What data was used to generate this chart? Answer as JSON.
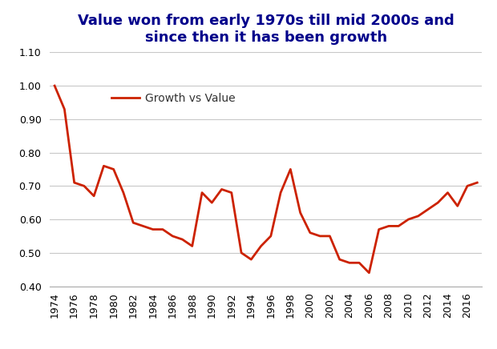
{
  "title": "Value won from early 1970s till mid 2000s and\nsince then it has been growth",
  "legend_label": "Growth vs Value",
  "line_color": "#CC2200",
  "background_color": "#ffffff",
  "grid_color": "#c8c8c8",
  "title_color": "#00008B",
  "years": [
    1974,
    1975,
    1976,
    1977,
    1978,
    1979,
    1980,
    1981,
    1982,
    1983,
    1984,
    1985,
    1986,
    1987,
    1988,
    1989,
    1990,
    1991,
    1992,
    1993,
    1994,
    1995,
    1996,
    1997,
    1998,
    1999,
    2000,
    2001,
    2002,
    2003,
    2004,
    2005,
    2006,
    2007,
    2008,
    2009,
    2010,
    2011,
    2012,
    2013,
    2014,
    2015,
    2016,
    2017
  ],
  "values": [
    1.0,
    0.93,
    0.71,
    0.7,
    0.67,
    0.76,
    0.75,
    0.68,
    0.59,
    0.58,
    0.57,
    0.57,
    0.55,
    0.54,
    0.52,
    0.68,
    0.65,
    0.69,
    0.68,
    0.5,
    0.48,
    0.52,
    0.55,
    0.68,
    0.75,
    0.62,
    0.56,
    0.55,
    0.55,
    0.48,
    0.47,
    0.47,
    0.44,
    0.57,
    0.58,
    0.58,
    0.6,
    0.61,
    0.63,
    0.65,
    0.68,
    0.64,
    0.7,
    0.71
  ],
  "ylim": [
    0.4,
    1.1
  ],
  "yticks": [
    0.4,
    0.5,
    0.6,
    0.7,
    0.8,
    0.9,
    1.0,
    1.1
  ],
  "xtick_years": [
    1974,
    1976,
    1978,
    1980,
    1982,
    1984,
    1986,
    1988,
    1990,
    1992,
    1994,
    1996,
    1998,
    2000,
    2002,
    2004,
    2006,
    2008,
    2010,
    2012,
    2014,
    2016
  ],
  "line_width": 2.0,
  "title_fontsize": 13,
  "tick_fontsize": 9,
  "legend_fontsize": 10
}
